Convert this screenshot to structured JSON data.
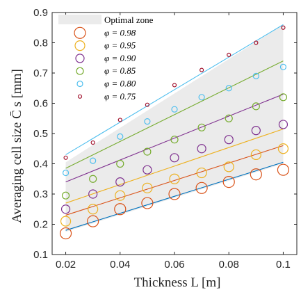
{
  "chart_data": {
    "type": "scatter",
    "xlabel": "Thickness   L [m]",
    "ylabel": "Averaging cell size  C̄ s  [mm]",
    "xlim": [
      0.015,
      0.105
    ],
    "ylim": [
      0.1,
      0.9
    ],
    "xticks": [
      "0.02",
      "0.04",
      "0.06",
      "0.08",
      "0.1"
    ],
    "yticks": [
      "0.1",
      "0.2",
      "0.3",
      "0.4",
      "0.5",
      "0.6",
      "0.7",
      "0.8",
      "0.9"
    ],
    "x": [
      0.02,
      0.03,
      0.04,
      0.05,
      0.06,
      0.07,
      0.08,
      0.09,
      0.1
    ],
    "grid": false,
    "legend_position": "top-left",
    "optimal_zone": {
      "label": "Optimal zone",
      "color": "#ebebeb",
      "lower": [
        0.175,
        0.4
      ],
      "upper": [
        0.405,
        0.86
      ]
    },
    "series": [
      {
        "name": "φ = 0.98",
        "color": "#d95319",
        "marker_size": 8,
        "values": [
          0.17,
          0.21,
          0.25,
          0.27,
          0.3,
          0.32,
          0.34,
          0.365,
          0.38
        ],
        "fit": [
          0.18,
          0.405
        ],
        "fit_color": "#0072bd"
      },
      {
        "name": "φ = 0.95",
        "color": "#edb120",
        "marker_size": 7,
        "values": [
          0.21,
          0.25,
          0.295,
          0.32,
          0.35,
          0.37,
          0.39,
          0.43,
          0.45
        ],
        "fit": [
          0.23,
          0.46
        ],
        "fit_color": "#d95319"
      },
      {
        "name": "φ = 0.90",
        "color": "#7e2f8e",
        "marker_size": 6,
        "values": [
          0.25,
          0.3,
          0.34,
          0.38,
          0.42,
          0.45,
          0.48,
          0.51,
          0.53
        ],
        "fit": [
          0.27,
          0.515
        ],
        "fit_color": "#edb120"
      },
      {
        "name": "φ = 0.85",
        "color": "#77ac30",
        "marker_size": 5,
        "values": [
          0.295,
          0.35,
          0.4,
          0.44,
          0.48,
          0.52,
          0.55,
          0.59,
          0.62
        ],
        "fit": [
          0.34,
          0.63
        ],
        "fit_color": "#7e2f8e"
      },
      {
        "name": "φ = 0.80",
        "color": "#4dbeee",
        "marker_size": 4,
        "values": [
          0.37,
          0.41,
          0.49,
          0.54,
          0.58,
          0.62,
          0.65,
          0.69,
          0.72
        ],
        "fit": [
          0.385,
          0.74
        ],
        "fit_color": "#77ac30"
      },
      {
        "name": "φ = 0.75",
        "color": "#a2142f",
        "marker_size": 2.5,
        "values": [
          0.42,
          0.47,
          0.545,
          0.595,
          0.66,
          0.71,
          0.76,
          0.8,
          0.85
        ],
        "fit": [
          0.43,
          0.86
        ],
        "fit_color": "#4dbeee"
      }
    ]
  }
}
